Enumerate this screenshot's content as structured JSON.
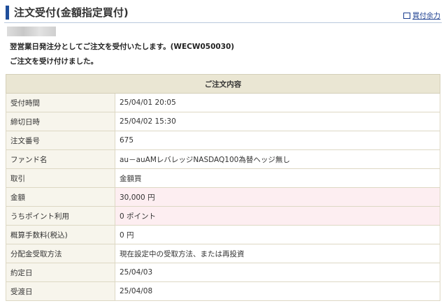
{
  "header": {
    "title": "注文受付(金額指定買付)",
    "link": "買付余力"
  },
  "messages": [
    "翌営業日発注分としてご注文を受付いたします。(WECW050030)",
    "ご注文を受け付けました。"
  ],
  "table": {
    "caption": "ご注文内容",
    "rows": [
      [
        "受付時間",
        "25/04/01 20:05"
      ],
      [
        "締切日時",
        "25/04/02 15:30"
      ],
      [
        "注文番号",
        "675"
      ],
      [
        "ファンド名",
        "au－auAMレバレッジNASDAQ100為替ヘッジ無し"
      ],
      [
        "取引",
        "金額買"
      ],
      [
        "金額",
        "30,000 円"
      ],
      [
        "うちポイント利用",
        "0 ポイント"
      ],
      [
        "概算手数料(税込)",
        "0 円"
      ],
      [
        "分配金受取方法",
        "現在設定中の受取方法、または再投資"
      ],
      [
        "約定日",
        "25/04/03"
      ],
      [
        "受渡日",
        "25/04/08"
      ]
    ]
  }
}
